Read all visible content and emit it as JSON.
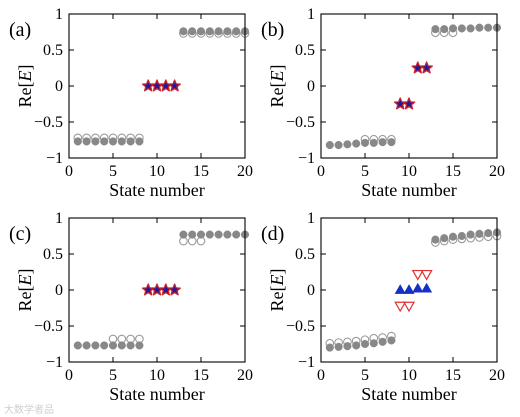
{
  "colors": {
    "gray_filled": "#888888",
    "gray_open": "#9a9a9a",
    "star_fill": "#1a1aa8",
    "star_edge": "#d02020",
    "triangle_up": "#1530c8",
    "triangle_down": "#e03030"
  },
  "watermark_text": "大数学者品",
  "chart_data": [
    {
      "type": "scatter",
      "panel_label": "(a)",
      "xlabel": "State number",
      "ylabel": "Re[E]",
      "xlim": [
        0,
        20
      ],
      "ylim": [
        -1,
        1
      ],
      "xticks": [
        0,
        5,
        10,
        15,
        20
      ],
      "yticks": [
        -1,
        -0.5,
        0,
        0.5,
        1
      ],
      "xtick_labels": [
        "0",
        "5",
        "10",
        "15",
        "20"
      ],
      "ytick_labels": [
        "−1",
        "−0.5",
        "0",
        "0.5",
        "1"
      ],
      "series": [
        {
          "marker": "open-circle",
          "x": [
            1,
            2,
            3,
            4,
            5,
            6,
            7,
            8,
            13,
            14,
            15,
            16,
            17,
            18,
            19,
            20
          ],
          "y": [
            -0.72,
            -0.72,
            -0.72,
            -0.72,
            -0.72,
            -0.72,
            -0.72,
            -0.72,
            0.73,
            0.73,
            0.73,
            0.73,
            0.73,
            0.73,
            0.73,
            0.73
          ]
        },
        {
          "marker": "filled-circle",
          "x": [
            1,
            2,
            3,
            4,
            5,
            6,
            7,
            8,
            13,
            14,
            15,
            16,
            17,
            18,
            19,
            20
          ],
          "y": [
            -0.77,
            -0.77,
            -0.77,
            -0.77,
            -0.77,
            -0.77,
            -0.77,
            -0.77,
            0.76,
            0.76,
            0.76,
            0.76,
            0.76,
            0.76,
            0.76,
            0.76
          ]
        },
        {
          "marker": "star",
          "x": [
            9,
            10,
            11,
            12
          ],
          "y": [
            0,
            0,
            0,
            0
          ]
        }
      ]
    },
    {
      "type": "scatter",
      "panel_label": "(b)",
      "xlabel": "State number",
      "ylabel": "Re[E]",
      "xlim": [
        0,
        20
      ],
      "ylim": [
        -1,
        1
      ],
      "xticks": [
        0,
        5,
        10,
        15,
        20
      ],
      "yticks": [
        -1,
        -0.5,
        0,
        0.5,
        1
      ],
      "xtick_labels": [
        "0",
        "5",
        "10",
        "15",
        "20"
      ],
      "ytick_labels": [
        "−1",
        "−0.5",
        "0",
        "0.5",
        "1"
      ],
      "series": [
        {
          "marker": "open-circle",
          "x": [
            5,
            6,
            7,
            8,
            13,
            14,
            15
          ],
          "y": [
            -0.74,
            -0.74,
            -0.74,
            -0.74,
            0.74,
            0.74,
            0.74
          ]
        },
        {
          "marker": "filled-circle",
          "x": [
            1,
            2,
            3,
            4,
            5,
            6,
            7,
            8,
            13,
            14,
            15,
            16,
            17,
            18,
            19,
            20
          ],
          "y": [
            -0.82,
            -0.82,
            -0.81,
            -0.8,
            -0.79,
            -0.79,
            -0.78,
            -0.78,
            0.79,
            0.79,
            0.8,
            0.8,
            0.8,
            0.81,
            0.81,
            0.81
          ]
        },
        {
          "marker": "star",
          "x": [
            9,
            10,
            11,
            12
          ],
          "y": [
            -0.25,
            -0.25,
            0.25,
            0.25
          ]
        }
      ]
    },
    {
      "type": "scatter",
      "panel_label": "(c)",
      "xlabel": "State number",
      "ylabel": "Re[E]",
      "xlim": [
        0,
        20
      ],
      "ylim": [
        -1,
        1
      ],
      "xticks": [
        0,
        5,
        10,
        15,
        20
      ],
      "yticks": [
        -1,
        -0.5,
        0,
        0.5,
        1
      ],
      "xtick_labels": [
        "0",
        "5",
        "10",
        "15",
        "20"
      ],
      "ytick_labels": [
        "−1",
        "−0.5",
        "0",
        "0.5",
        "1"
      ],
      "series": [
        {
          "marker": "open-circle",
          "x": [
            5,
            6,
            7,
            8,
            13,
            14,
            15
          ],
          "y": [
            -0.68,
            -0.68,
            -0.68,
            -0.68,
            0.68,
            0.68,
            0.68
          ]
        },
        {
          "marker": "filled-circle",
          "x": [
            1,
            2,
            3,
            4,
            5,
            6,
            7,
            8,
            13,
            14,
            15,
            16,
            17,
            18,
            19,
            20
          ],
          "y": [
            -0.77,
            -0.77,
            -0.77,
            -0.77,
            -0.77,
            -0.77,
            -0.77,
            -0.77,
            0.77,
            0.77,
            0.77,
            0.77,
            0.77,
            0.77,
            0.77,
            0.77
          ]
        },
        {
          "marker": "star",
          "x": [
            9,
            10,
            11,
            12
          ],
          "y": [
            0,
            0,
            0,
            0
          ]
        }
      ]
    },
    {
      "type": "scatter",
      "panel_label": "(d)",
      "xlabel": "State number",
      "ylabel": "Re[E]",
      "xlim": [
        0,
        20
      ],
      "ylim": [
        -1,
        1
      ],
      "xticks": [
        0,
        5,
        10,
        15,
        20
      ],
      "yticks": [
        -1,
        -0.5,
        0,
        0.5,
        1
      ],
      "xtick_labels": [
        "0",
        "5",
        "10",
        "15",
        "20"
      ],
      "ytick_labels": [
        "−1",
        "−0.5",
        "0",
        "0.5",
        "1"
      ],
      "series": [
        {
          "marker": "open-circle",
          "x": [
            1,
            2,
            3,
            4,
            5,
            6,
            7,
            8,
            13,
            14,
            15,
            16,
            17,
            18,
            19,
            20
          ],
          "y": [
            -0.74,
            -0.73,
            -0.72,
            -0.71,
            -0.69,
            -0.67,
            -0.66,
            -0.64,
            0.66,
            0.68,
            0.7,
            0.71,
            0.72,
            0.73,
            0.74,
            0.75
          ]
        },
        {
          "marker": "filled-circle",
          "x": [
            1,
            2,
            3,
            4,
            5,
            6,
            7,
            8,
            13,
            14,
            15,
            16,
            17,
            18,
            19,
            20
          ],
          "y": [
            -0.8,
            -0.79,
            -0.78,
            -0.77,
            -0.75,
            -0.74,
            -0.72,
            -0.7,
            0.7,
            0.72,
            0.74,
            0.75,
            0.77,
            0.78,
            0.79,
            0.8
          ]
        },
        {
          "marker": "triangle-up",
          "x": [
            9,
            10,
            11,
            12
          ],
          "y": [
            0,
            0,
            0.02,
            0.02
          ]
        },
        {
          "marker": "triangle-down",
          "x": [
            9,
            10,
            11,
            12
          ],
          "y": [
            -0.22,
            -0.22,
            0.22,
            0.22
          ]
        }
      ]
    }
  ]
}
